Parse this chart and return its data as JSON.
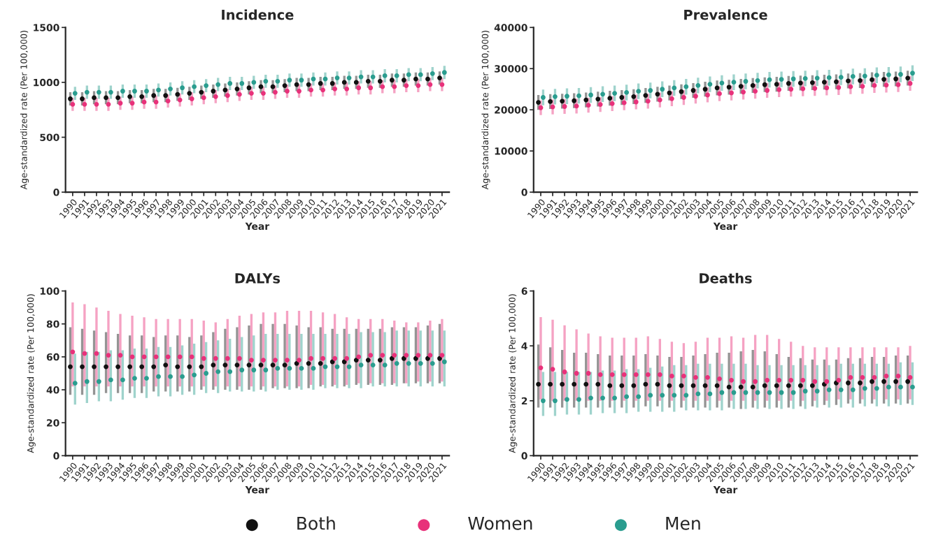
{
  "chart_data": [
    {
      "type": "scatter",
      "title": "Incidence",
      "xlabel": "Year",
      "ylabel": "Age-standardized rate (Per 100,000)",
      "categories": [
        "1990",
        "1991",
        "1992",
        "1993",
        "1994",
        "1995",
        "1996",
        "1997",
        "1998",
        "1999",
        "2000",
        "2001",
        "2002",
        "2003",
        "2004",
        "2005",
        "2006",
        "2007",
        "2008",
        "2009",
        "2010",
        "2011",
        "2012",
        "2013",
        "2014",
        "2015",
        "2016",
        "2017",
        "2018",
        "2019",
        "2020",
        "2021"
      ],
      "ylim": [
        0,
        1500
      ],
      "yticks": [
        0,
        500,
        1000,
        1500
      ],
      "legend": "bottom",
      "marker": "circle",
      "grid": false,
      "series": [
        {
          "name": "Both",
          "color": "#111111",
          "values": [
            850,
            850,
            860,
            860,
            860,
            870,
            870,
            880,
            880,
            890,
            900,
            910,
            920,
            930,
            940,
            950,
            960,
            960,
            970,
            980,
            980,
            990,
            990,
            1000,
            1000,
            1010,
            1010,
            1020,
            1020,
            1030,
            1030,
            1040
          ],
          "errors": [
            60,
            60,
            60,
            60,
            60,
            60,
            60,
            60,
            60,
            60,
            60,
            60,
            60,
            60,
            60,
            60,
            60,
            60,
            60,
            60,
            60,
            60,
            60,
            60,
            60,
            60,
            60,
            60,
            60,
            60,
            60,
            60
          ]
        },
        {
          "name": "Women",
          "color": "#e8317a",
          "values": [
            800,
            800,
            800,
            800,
            810,
            810,
            820,
            820,
            830,
            840,
            850,
            860,
            870,
            880,
            890,
            900,
            900,
            910,
            920,
            920,
            930,
            930,
            940,
            940,
            950,
            950,
            960,
            960,
            970,
            970,
            980,
            980
          ],
          "errors": [
            60,
            60,
            60,
            60,
            60,
            60,
            60,
            60,
            60,
            60,
            60,
            60,
            60,
            60,
            60,
            60,
            60,
            60,
            60,
            60,
            60,
            60,
            60,
            60,
            60,
            60,
            60,
            60,
            60,
            60,
            60,
            60
          ]
        },
        {
          "name": "Men",
          "color": "#2a9d8f",
          "values": [
            900,
            910,
            910,
            910,
            920,
            920,
            920,
            930,
            940,
            950,
            960,
            970,
            980,
            990,
            990,
            1000,
            1010,
            1010,
            1020,
            1020,
            1030,
            1030,
            1040,
            1040,
            1050,
            1050,
            1060,
            1060,
            1070,
            1070,
            1080,
            1090
          ],
          "errors": [
            60,
            60,
            60,
            60,
            60,
            60,
            60,
            60,
            60,
            60,
            60,
            60,
            60,
            60,
            60,
            60,
            60,
            60,
            60,
            60,
            60,
            60,
            60,
            60,
            60,
            60,
            60,
            60,
            60,
            60,
            60,
            60
          ]
        }
      ]
    },
    {
      "type": "scatter",
      "title": "Prevalence",
      "xlabel": "Year",
      "ylabel": "Age-standardized rate (Per 100,000)",
      "categories": [
        "1990",
        "1991",
        "1992",
        "1993",
        "1994",
        "1995",
        "1996",
        "1997",
        "1998",
        "1999",
        "2000",
        "2001",
        "2002",
        "2003",
        "2004",
        "2005",
        "2006",
        "2007",
        "2008",
        "2009",
        "2010",
        "2011",
        "2012",
        "2013",
        "2014",
        "2015",
        "2016",
        "2017",
        "2018",
        "2019",
        "2020",
        "2021"
      ],
      "ylim": [
        0,
        40000
      ],
      "yticks": [
        0,
        10000,
        20000,
        30000,
        40000
      ],
      "marker": "circle",
      "grid": false,
      "series": [
        {
          "color": "#111111",
          "values": [
            21800,
            22000,
            22100,
            22200,
            22400,
            22600,
            22800,
            23000,
            23200,
            23500,
            23800,
            24100,
            24400,
            24700,
            25000,
            25300,
            25500,
            25700,
            25900,
            26100,
            26200,
            26400,
            26500,
            26600,
            26700,
            26800,
            27000,
            27100,
            27300,
            27400,
            27500,
            27700
          ],
          "errors": [
            1800,
            1800,
            1800,
            1800,
            1800,
            1800,
            1800,
            1800,
            1800,
            1800,
            1800,
            1800,
            1800,
            1800,
            1800,
            1800,
            1800,
            1800,
            1800,
            1800,
            1800,
            1800,
            1800,
            1800,
            1800,
            1800,
            1800,
            1800,
            1800,
            1800,
            1800,
            1800
          ]
        },
        {
          "color": "#e8317a",
          "values": [
            20500,
            20700,
            20800,
            20900,
            21100,
            21300,
            21500,
            21700,
            21900,
            22100,
            22400,
            22700,
            23000,
            23300,
            23600,
            23900,
            24100,
            24300,
            24500,
            24700,
            24900,
            25000,
            25100,
            25200,
            25300,
            25400,
            25600,
            25700,
            25900,
            26000,
            26100,
            26400
          ],
          "errors": [
            1800,
            1800,
            1800,
            1800,
            1800,
            1800,
            1800,
            1800,
            1800,
            1800,
            1800,
            1800,
            1800,
            1800,
            1800,
            1800,
            1800,
            1800,
            1800,
            1800,
            1800,
            1800,
            1800,
            1800,
            1800,
            1800,
            1800,
            1800,
            1800,
            1800,
            1800,
            1800
          ]
        },
        {
          "color": "#2a9d8f",
          "values": [
            23000,
            23200,
            23300,
            23400,
            23600,
            23800,
            24000,
            24200,
            24500,
            24700,
            25000,
            25300,
            25600,
            25900,
            26200,
            26500,
            26700,
            26900,
            27100,
            27300,
            27400,
            27500,
            27600,
            27700,
            27800,
            27900,
            28100,
            28200,
            28400,
            28500,
            28600,
            28900
          ],
          "errors": [
            1900,
            1900,
            1900,
            1900,
            1900,
            1900,
            1900,
            1900,
            1900,
            1900,
            1900,
            1900,
            1900,
            1900,
            1900,
            1900,
            1900,
            1900,
            1900,
            1900,
            1900,
            1900,
            1900,
            1900,
            1900,
            1900,
            1900,
            1900,
            1900,
            1900,
            1900,
            1900
          ]
        }
      ]
    },
    {
      "type": "scatter",
      "title": "DALYs",
      "xlabel": "Year",
      "ylabel": "Age-standardized rate (Per 100,000)",
      "categories": [
        "1990",
        "1991",
        "1992",
        "1993",
        "1994",
        "1995",
        "1996",
        "1997",
        "1998",
        "1999",
        "2000",
        "2001",
        "2002",
        "2003",
        "2004",
        "2005",
        "2006",
        "2007",
        "2008",
        "2009",
        "2010",
        "2011",
        "2012",
        "2013",
        "2014",
        "2015",
        "2016",
        "2017",
        "2018",
        "2019",
        "2020",
        "2021"
      ],
      "ylim": [
        0,
        100
      ],
      "yticks": [
        0,
        20,
        40,
        60,
        80,
        100
      ],
      "marker": "circle",
      "grid": false,
      "series": [
        {
          "color": "#111111",
          "values": [
            54,
            54,
            54,
            54,
            54,
            54,
            54,
            54,
            55,
            54,
            54,
            54,
            55,
            55,
            55,
            55,
            55,
            55,
            55,
            56,
            56,
            56,
            57,
            57,
            58,
            58,
            58,
            59,
            59,
            59,
            59,
            59
          ],
          "errors": [
            [
              37,
              78
            ],
            [
              37,
              77
            ],
            [
              37,
              76
            ],
            [
              38,
              75
            ],
            [
              38,
              74
            ],
            [
              38,
              73
            ],
            [
              38,
              73
            ],
            [
              39,
              72
            ],
            [
              39,
              73
            ],
            [
              39,
              73
            ],
            [
              39,
              72
            ],
            [
              40,
              73
            ],
            [
              40,
              75
            ],
            [
              40,
              77
            ],
            [
              40,
              78
            ],
            [
              40,
              79
            ],
            [
              40,
              80
            ],
            [
              41,
              80
            ],
            [
              41,
              80
            ],
            [
              41,
              79
            ],
            [
              41,
              78
            ],
            [
              42,
              78
            ],
            [
              42,
              77
            ],
            [
              42,
              77
            ],
            [
              43,
              77
            ],
            [
              43,
              77
            ],
            [
              43,
              77
            ],
            [
              43,
              78
            ],
            [
              44,
              78
            ],
            [
              44,
              78
            ],
            [
              44,
              79
            ],
            [
              44,
              80
            ]
          ]
        },
        {
          "color": "#e8317a",
          "values": [
            63,
            62,
            62,
            61,
            61,
            60,
            60,
            60,
            60,
            60,
            60,
            59,
            59,
            59,
            59,
            58,
            58,
            58,
            58,
            58,
            59,
            59,
            59,
            59,
            60,
            61,
            61,
            61,
            61,
            61,
            61,
            61
          ],
          "errors": [
            [
              42,
              93
            ],
            [
              42,
              92
            ],
            [
              42,
              90
            ],
            [
              42,
              88
            ],
            [
              42,
              86
            ],
            [
              42,
              85
            ],
            [
              42,
              84
            ],
            [
              42,
              83
            ],
            [
              42,
              83
            ],
            [
              42,
              83
            ],
            [
              42,
              83
            ],
            [
              42,
              82
            ],
            [
              42,
              81
            ],
            [
              42,
              83
            ],
            [
              42,
              85
            ],
            [
              42,
              86
            ],
            [
              42,
              87
            ],
            [
              42,
              87
            ],
            [
              42,
              88
            ],
            [
              42,
              88
            ],
            [
              43,
              88
            ],
            [
              43,
              87
            ],
            [
              43,
              86
            ],
            [
              43,
              84
            ],
            [
              44,
              83
            ],
            [
              44,
              83
            ],
            [
              44,
              83
            ],
            [
              44,
              82
            ],
            [
              44,
              81
            ],
            [
              45,
              81
            ],
            [
              45,
              82
            ],
            [
              45,
              83
            ]
          ]
        },
        {
          "color": "#2a9d8f",
          "values": [
            44,
            45,
            45,
            46,
            46,
            47,
            47,
            48,
            48,
            48,
            49,
            50,
            51,
            51,
            52,
            52,
            52,
            53,
            53,
            53,
            53,
            54,
            54,
            54,
            55,
            55,
            55,
            56,
            56,
            56,
            56,
            57
          ],
          "errors": [
            [
              31,
              62
            ],
            [
              32,
              63
            ],
            [
              33,
              63
            ],
            [
              33,
              64
            ],
            [
              34,
              64
            ],
            [
              35,
              65
            ],
            [
              35,
              65
            ],
            [
              36,
              66
            ],
            [
              36,
              66
            ],
            [
              37,
              67
            ],
            [
              37,
              68
            ],
            [
              38,
              69
            ],
            [
              38,
              70
            ],
            [
              39,
              71
            ],
            [
              39,
              72
            ],
            [
              39,
              73
            ],
            [
              39,
              74
            ],
            [
              40,
              74
            ],
            [
              40,
              74
            ],
            [
              40,
              74
            ],
            [
              40,
              74
            ],
            [
              41,
              74
            ],
            [
              41,
              74
            ],
            [
              41,
              74
            ],
            [
              41,
              75
            ],
            [
              42,
              75
            ],
            [
              42,
              75
            ],
            [
              42,
              76
            ],
            [
              42,
              76
            ],
            [
              42,
              76
            ],
            [
              42,
              76
            ],
            [
              42,
              76
            ]
          ]
        }
      ]
    },
    {
      "type": "scatter",
      "title": "Deaths",
      "xlabel": "Year",
      "ylabel": "Age-standardized rate (Per 100,000)",
      "categories": [
        "1990",
        "1991",
        "1992",
        "1993",
        "1994",
        "1995",
        "1996",
        "1997",
        "1998",
        "1999",
        "2000",
        "2001",
        "2002",
        "2003",
        "2004",
        "2005",
        "2006",
        "2007",
        "2008",
        "2009",
        "2010",
        "2011",
        "2012",
        "2013",
        "2014",
        "2015",
        "2016",
        "2017",
        "2018",
        "2019",
        "2020",
        "2021"
      ],
      "ylim": [
        0,
        6
      ],
      "yticks": [
        0,
        2,
        4,
        6
      ],
      "marker": "circle",
      "grid": false,
      "series": [
        {
          "color": "#111111",
          "values": [
            2.6,
            2.6,
            2.6,
            2.6,
            2.6,
            2.6,
            2.55,
            2.55,
            2.55,
            2.6,
            2.6,
            2.55,
            2.55,
            2.55,
            2.55,
            2.55,
            2.5,
            2.5,
            2.5,
            2.55,
            2.55,
            2.55,
            2.55,
            2.55,
            2.6,
            2.65,
            2.65,
            2.65,
            2.7,
            2.7,
            2.7,
            2.7
          ],
          "errors": [
            [
              1.75,
              4.05
            ],
            [
              1.75,
              3.95
            ],
            [
              1.75,
              3.85
            ],
            [
              1.75,
              3.75
            ],
            [
              1.75,
              3.75
            ],
            [
              1.75,
              3.7
            ],
            [
              1.75,
              3.65
            ],
            [
              1.75,
              3.65
            ],
            [
              1.75,
              3.65
            ],
            [
              1.8,
              3.7
            ],
            [
              1.8,
              3.65
            ],
            [
              1.75,
              3.6
            ],
            [
              1.75,
              3.6
            ],
            [
              1.75,
              3.65
            ],
            [
              1.75,
              3.7
            ],
            [
              1.75,
              3.75
            ],
            [
              1.75,
              3.75
            ],
            [
              1.7,
              3.8
            ],
            [
              1.75,
              3.85
            ],
            [
              1.75,
              3.8
            ],
            [
              1.75,
              3.7
            ],
            [
              1.75,
              3.6
            ],
            [
              1.8,
              3.55
            ],
            [
              1.8,
              3.5
            ],
            [
              1.85,
              3.5
            ],
            [
              1.85,
              3.5
            ],
            [
              1.9,
              3.55
            ],
            [
              1.9,
              3.55
            ],
            [
              1.9,
              3.6
            ],
            [
              1.9,
              3.6
            ],
            [
              1.9,
              3.65
            ],
            [
              1.9,
              3.65
            ]
          ]
        },
        {
          "color": "#e8317a",
          "values": [
            3.2,
            3.15,
            3.05,
            3.0,
            3.0,
            2.95,
            2.95,
            2.95,
            2.95,
            2.95,
            2.95,
            2.9,
            2.9,
            2.85,
            2.85,
            2.8,
            2.75,
            2.7,
            2.7,
            2.75,
            2.75,
            2.75,
            2.75,
            2.7,
            2.7,
            2.75,
            2.85,
            2.85,
            2.85,
            2.9,
            2.9,
            2.85
          ],
          "errors": [
            [
              2.05,
              5.05
            ],
            [
              2.0,
              4.95
            ],
            [
              2.0,
              4.75
            ],
            [
              2.0,
              4.6
            ],
            [
              2.0,
              4.45
            ],
            [
              2.0,
              4.35
            ],
            [
              2.0,
              4.3
            ],
            [
              2.0,
              4.3
            ],
            [
              2.0,
              4.3
            ],
            [
              2.0,
              4.35
            ],
            [
              2.0,
              4.25
            ],
            [
              2.0,
              4.15
            ],
            [
              2.0,
              4.1
            ],
            [
              2.0,
              4.15
            ],
            [
              2.0,
              4.3
            ],
            [
              2.0,
              4.3
            ],
            [
              2.0,
              4.35
            ],
            [
              2.0,
              4.3
            ],
            [
              2.0,
              4.4
            ],
            [
              2.0,
              4.4
            ],
            [
              2.0,
              4.25
            ],
            [
              2.0,
              4.15
            ],
            [
              2.0,
              4.0
            ],
            [
              2.0,
              3.95
            ],
            [
              2.0,
              3.95
            ],
            [
              2.05,
              3.95
            ],
            [
              2.05,
              3.95
            ],
            [
              2.05,
              3.95
            ],
            [
              2.05,
              3.95
            ],
            [
              2.05,
              3.95
            ],
            [
              2.05,
              3.95
            ],
            [
              2.05,
              4.0
            ]
          ]
        },
        {
          "color": "#2a9d8f",
          "values": [
            2.0,
            2.0,
            2.05,
            2.05,
            2.1,
            2.1,
            2.1,
            2.15,
            2.15,
            2.2,
            2.2,
            2.2,
            2.2,
            2.25,
            2.25,
            2.3,
            2.3,
            2.3,
            2.3,
            2.3,
            2.3,
            2.3,
            2.35,
            2.35,
            2.4,
            2.4,
            2.4,
            2.45,
            2.45,
            2.5,
            2.5,
            2.5
          ],
          "errors": [
            [
              1.45,
              3.05
            ],
            [
              1.45,
              3.05
            ],
            [
              1.5,
              3.05
            ],
            [
              1.5,
              3.05
            ],
            [
              1.5,
              3.05
            ],
            [
              1.55,
              3.1
            ],
            [
              1.55,
              3.1
            ],
            [
              1.55,
              3.15
            ],
            [
              1.6,
              3.15
            ],
            [
              1.6,
              3.2
            ],
            [
              1.6,
              3.25
            ],
            [
              1.6,
              3.3
            ],
            [
              1.65,
              3.3
            ],
            [
              1.65,
              3.35
            ],
            [
              1.65,
              3.35
            ],
            [
              1.65,
              3.35
            ],
            [
              1.7,
              3.35
            ],
            [
              1.7,
              3.35
            ],
            [
              1.7,
              3.3
            ],
            [
              1.7,
              3.3
            ],
            [
              1.7,
              3.3
            ],
            [
              1.7,
              3.3
            ],
            [
              1.7,
              3.3
            ],
            [
              1.75,
              3.3
            ],
            [
              1.75,
              3.3
            ],
            [
              1.75,
              3.35
            ],
            [
              1.75,
              3.35
            ],
            [
              1.8,
              3.35
            ],
            [
              1.8,
              3.35
            ],
            [
              1.8,
              3.35
            ],
            [
              1.85,
              3.4
            ],
            [
              1.85,
              3.4
            ]
          ]
        }
      ]
    }
  ]
}
